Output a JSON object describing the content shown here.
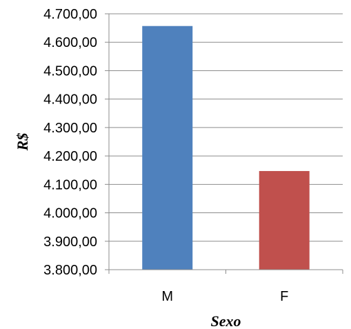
{
  "chart_data": {
    "type": "bar",
    "title": "",
    "xlabel": "Sexo",
    "ylabel": "R$",
    "categories": [
      "M",
      "F"
    ],
    "values": [
      4657,
      4147
    ],
    "ylim": [
      3800,
      4700
    ],
    "yticks": [
      3800,
      3900,
      4000,
      4100,
      4200,
      4300,
      4400,
      4500,
      4600,
      4700
    ],
    "ytick_labels": [
      "3.800,00",
      "3.900,00",
      "4.000,00",
      "4.100,00",
      "4.200,00",
      "4.300,00",
      "4.400,00",
      "4.500,00",
      "4.600,00",
      "4.700,00"
    ],
    "colors": [
      "#4F81BD",
      "#C0504D"
    ],
    "grid": true,
    "legend": false
  }
}
